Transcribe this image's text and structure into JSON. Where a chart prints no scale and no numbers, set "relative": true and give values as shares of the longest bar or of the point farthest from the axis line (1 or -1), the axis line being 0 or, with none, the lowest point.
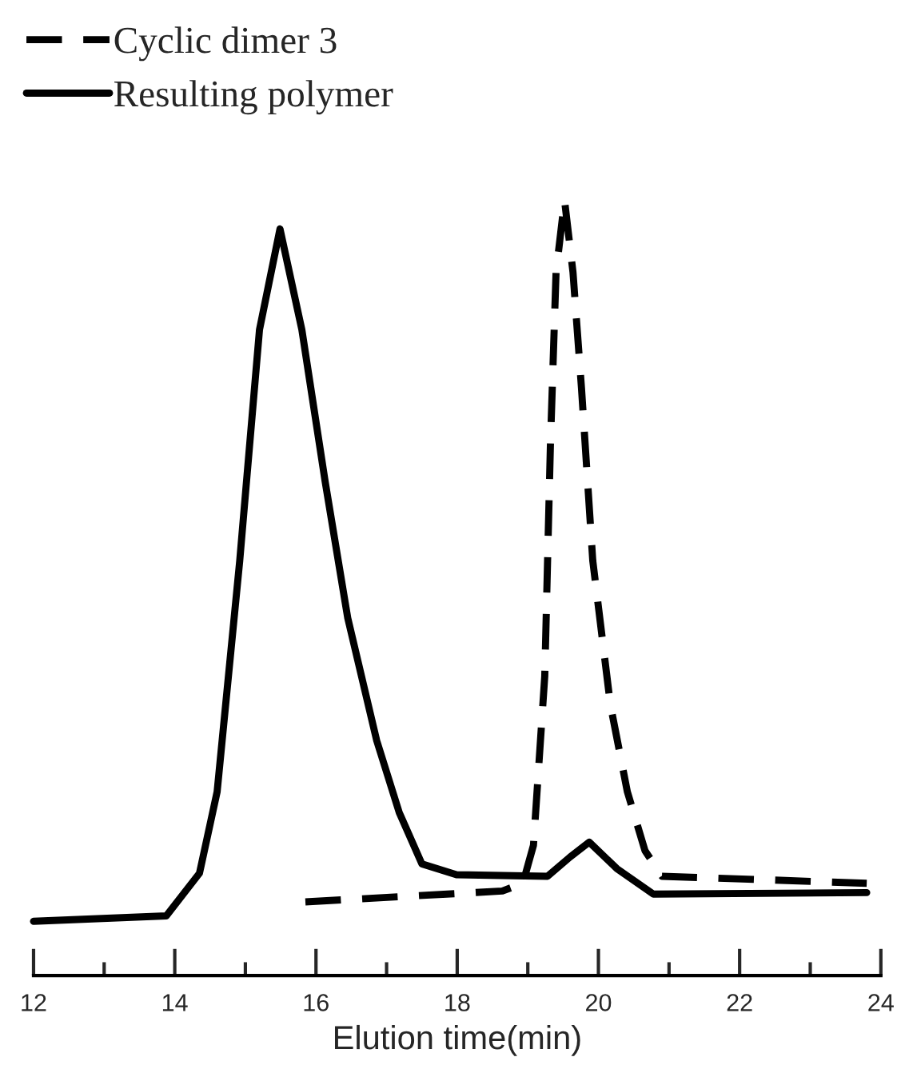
{
  "chart_data": {
    "type": "line",
    "relative": true,
    "xlabel": "Elution time(min)",
    "xlim": [
      12,
      24
    ],
    "xticks": [
      12,
      {
        "value": 13,
        "label": null
      },
      14,
      {
        "value": 15,
        "label": null
      },
      16,
      {
        "value": 17,
        "label": null
      },
      18,
      {
        "value": 19,
        "label": null
      },
      20,
      {
        "value": 21,
        "label": null
      },
      22,
      {
        "value": 23,
        "label": null
      },
      24
    ],
    "legend": "top left",
    "grid": false,
    "marker": "none",
    "series": [
      {
        "name": "Cyclic dimer 3",
        "color": "#000000",
        "line_style": "dashed",
        "x": [
          15.85,
          18.64,
          18.93,
          19.08,
          19.24,
          19.32,
          19.4,
          19.52,
          19.64,
          19.76,
          19.92,
          20.17,
          20.41,
          20.66,
          20.9,
          23.8
        ],
        "values": [
          0.095,
          0.109,
          0.119,
          0.168,
          0.386,
          0.684,
          0.907,
          1.0,
          0.907,
          0.758,
          0.535,
          0.349,
          0.237,
          0.161,
          0.128,
          0.119
        ]
      },
      {
        "name": "Resulting polymer",
        "color": "#000000",
        "line_style": "solid",
        "x": [
          12.0,
          13.88,
          14.35,
          14.6,
          14.92,
          15.2,
          15.49,
          15.8,
          16.13,
          16.45,
          16.86,
          17.18,
          17.5,
          17.99,
          19.28,
          19.6,
          19.87,
          20.26,
          20.78,
          23.8
        ],
        "values": [
          0.07,
          0.077,
          0.132,
          0.237,
          0.535,
          0.833,
          0.963,
          0.833,
          0.637,
          0.461,
          0.303,
          0.21,
          0.144,
          0.13,
          0.128,
          0.153,
          0.172,
          0.138,
          0.105,
          0.107
        ]
      }
    ]
  }
}
